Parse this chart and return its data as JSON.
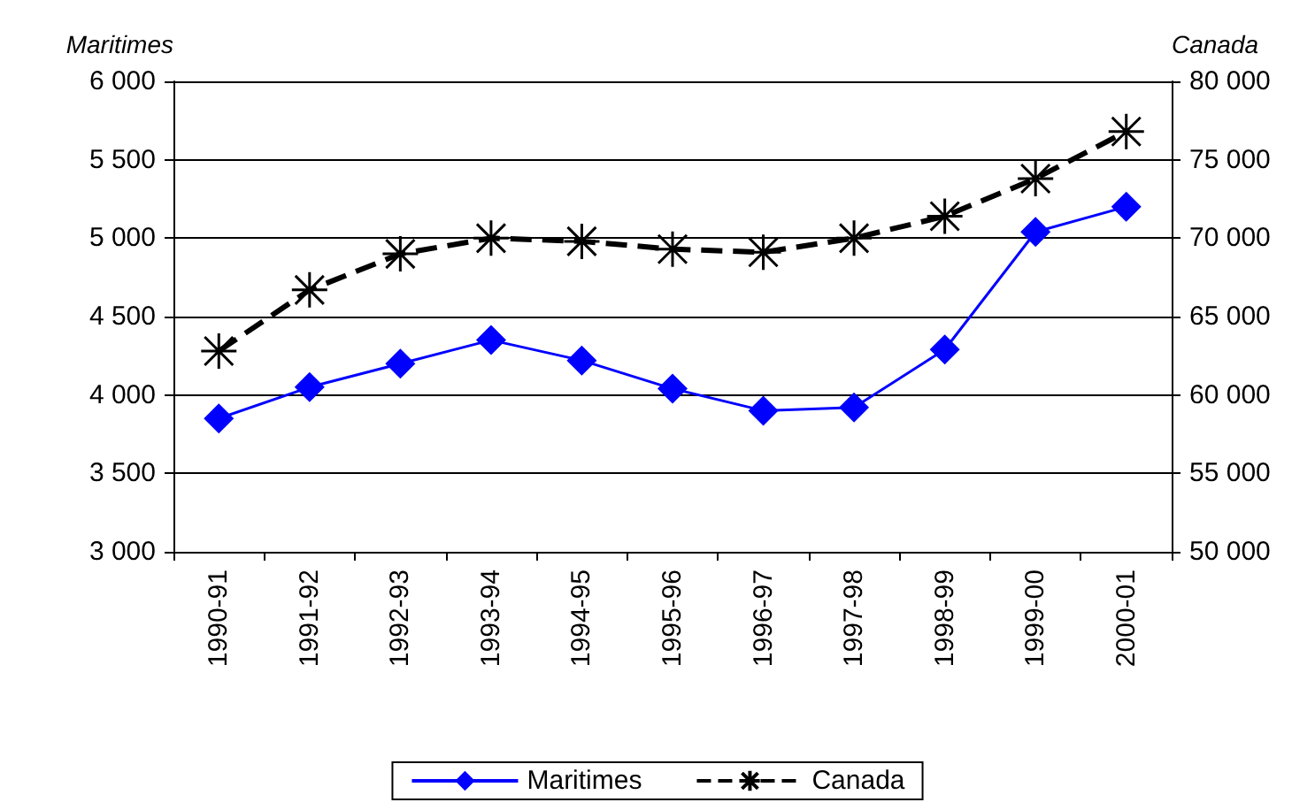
{
  "chart_data": {
    "type": "line",
    "ylabel": "Maritimes",
    "y2label": "Canada",
    "categories": [
      "1990-91",
      "1991-92",
      "1992-93",
      "1993-94",
      "1994-95",
      "1995-96",
      "1996-97",
      "1997-98",
      "1998-99",
      "1999-00",
      "2000-01"
    ],
    "series": [
      {
        "name": "Maritimes",
        "color": "#0000ff",
        "marker": "diamond",
        "line_style": "solid",
        "values": [
          3850,
          4050,
          4200,
          4350,
          4220,
          4040,
          3900,
          3920,
          4290,
          5040,
          5200
        ]
      },
      {
        "name": "Canada",
        "color": "#000000",
        "marker": "cross",
        "line_style": "dashed",
        "axis": "y2",
        "values": [
          62800,
          66700,
          69000,
          70000,
          69800,
          69300,
          69100,
          70000,
          71400,
          73800,
          76800
        ]
      }
    ],
    "ylim": [
      3000,
      6000
    ],
    "yticks": [
      {
        "value": 3000,
        "label": "3 000"
      },
      {
        "value": 3500,
        "label": "3 500"
      },
      {
        "value": 4000,
        "label": "4 000"
      },
      {
        "value": 4500,
        "label": "4 500"
      },
      {
        "value": 5000,
        "label": "5 000"
      },
      {
        "value": 5500,
        "label": "5 500"
      },
      {
        "value": 6000,
        "label": "6 000"
      }
    ],
    "y2lim": [
      50000,
      80000
    ],
    "y2ticks": [
      {
        "value": 50000,
        "label": "50 000"
      },
      {
        "value": 55000,
        "label": "55 000"
      },
      {
        "value": 60000,
        "label": "60 000"
      },
      {
        "value": 65000,
        "label": "65 000"
      },
      {
        "value": 70000,
        "label": "70 000"
      },
      {
        "value": 75000,
        "label": "75 000"
      },
      {
        "value": 80000,
        "label": "80 000"
      }
    ],
    "grid": "y",
    "legend": "bottom"
  }
}
